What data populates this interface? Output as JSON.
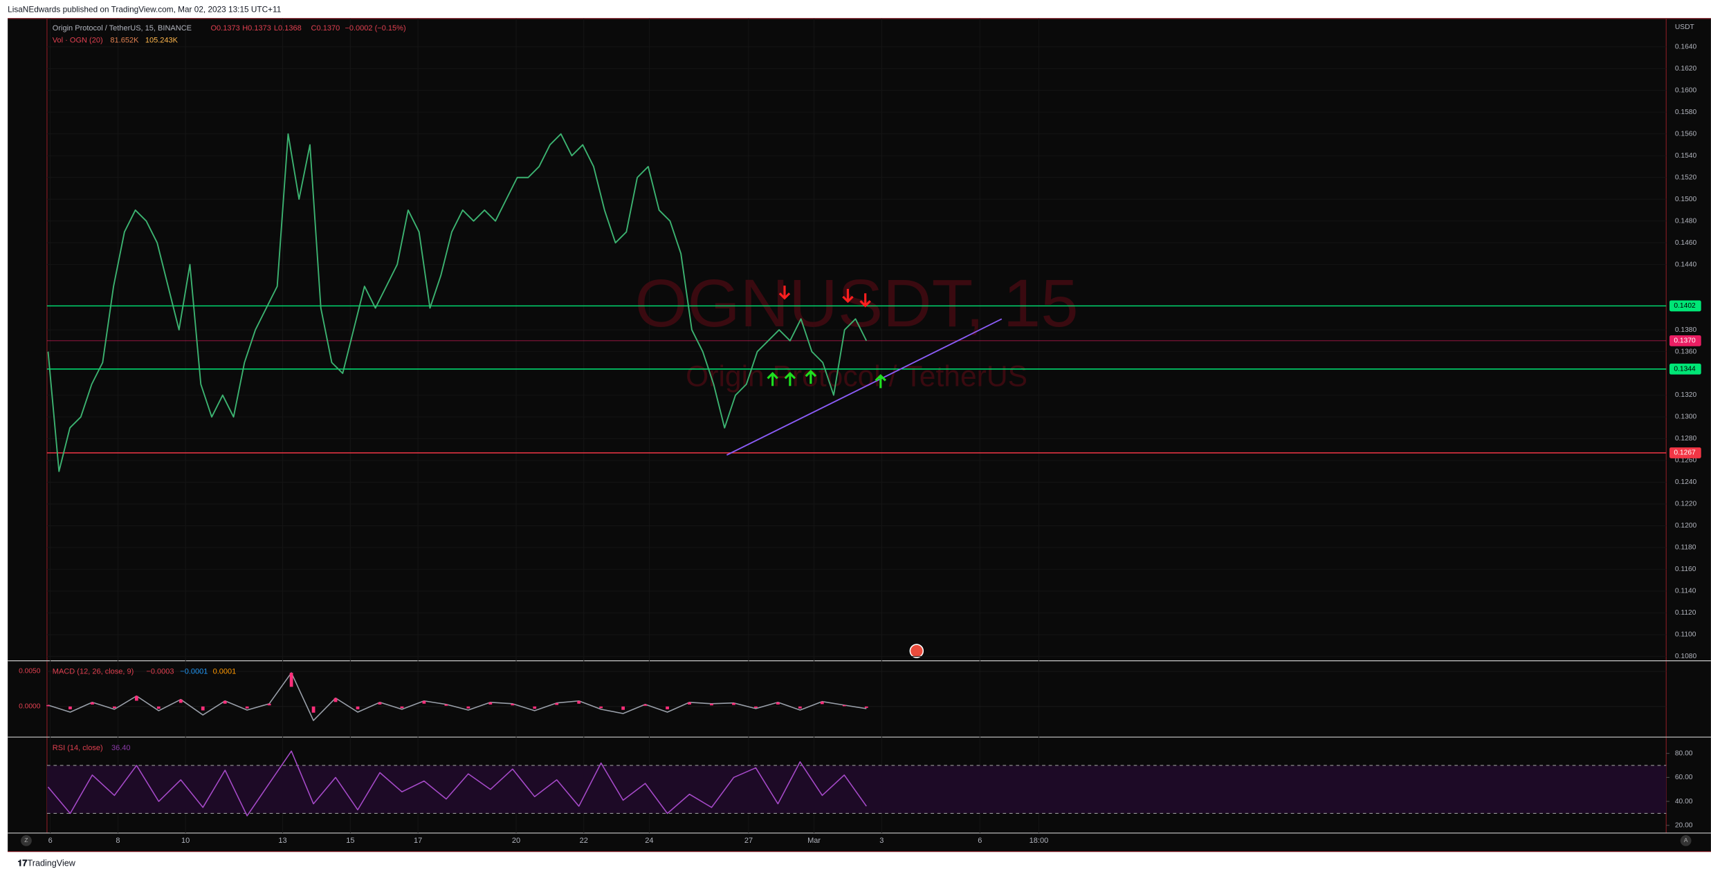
{
  "header": "LisaNEdwards published on TradingView.com, Mar 02, 2023 13:15 UTC+11",
  "footer": "TradingView",
  "chart_data": {
    "type": "line",
    "symbol": "Origin Protocol / TetherUS, 15, BINANCE",
    "ohlc": [
      "O0.1373",
      "H0.1373",
      "L0.1368",
      "C0.1370",
      "−0.0002 (−0.15%)"
    ],
    "volume_legend": [
      "Vol · OGN (20)",
      "81.652K",
      "105.243K"
    ],
    "watermark": [
      "OGNUSDT, 15",
      "Origin Protocol / TetherUS"
    ],
    "currency": "USDT",
    "color": "#3cb371",
    "values": [
      0.136,
      0.125,
      0.129,
      0.13,
      0.133,
      0.135,
      0.142,
      0.147,
      0.149,
      0.148,
      0.146,
      0.142,
      0.138,
      0.144,
      0.133,
      0.13,
      0.132,
      0.13,
      0.135,
      0.138,
      0.14,
      0.142,
      0.156,
      0.15,
      0.155,
      0.14,
      0.135,
      0.134,
      0.138,
      0.142,
      0.14,
      0.142,
      0.144,
      0.149,
      0.147,
      0.14,
      0.143,
      0.147,
      0.149,
      0.148,
      0.149,
      0.148,
      0.15,
      0.152,
      0.152,
      0.153,
      0.155,
      0.156,
      0.154,
      0.155,
      0.153,
      0.149,
      0.146,
      0.147,
      0.152,
      0.153,
      0.149,
      0.148,
      0.145,
      0.138,
      0.136,
      0.133,
      0.129,
      0.132,
      0.133,
      0.136,
      0.137,
      0.138,
      0.137,
      0.139,
      0.136,
      0.135,
      0.132,
      0.138,
      0.139,
      0.137
    ],
    "ylim": [
      0.1077,
      0.1665
    ],
    "yticks": [
      {
        "value": 0.108,
        "label": "0.1080"
      },
      {
        "value": 0.11,
        "label": "0.1100"
      },
      {
        "value": 0.112,
        "label": "0.1120"
      },
      {
        "value": 0.114,
        "label": "0.1140"
      },
      {
        "value": 0.116,
        "label": "0.1160"
      },
      {
        "value": 0.118,
        "label": "0.1180"
      },
      {
        "value": 0.12,
        "label": "0.1200"
      },
      {
        "value": 0.122,
        "label": "0.1220"
      },
      {
        "value": 0.124,
        "label": "0.1240"
      },
      {
        "value": 0.126,
        "label": "0.1260"
      },
      {
        "value": 0.128,
        "label": "0.1280"
      },
      {
        "value": 0.13,
        "label": "0.1300"
      },
      {
        "value": 0.132,
        "label": "0.1320"
      },
      {
        "value": 0.136,
        "label": "0.1360"
      },
      {
        "value": 0.138,
        "label": "0.1380"
      },
      {
        "value": 0.144,
        "label": "0.1440"
      },
      {
        "value": 0.146,
        "label": "0.1460"
      },
      {
        "value": 0.148,
        "label": "0.1480"
      },
      {
        "value": 0.15,
        "label": "0.1500"
      },
      {
        "value": 0.152,
        "label": "0.1520"
      },
      {
        "value": 0.154,
        "label": "0.1540"
      },
      {
        "value": 0.156,
        "label": "0.1560"
      },
      {
        "value": 0.158,
        "label": "0.1580"
      },
      {
        "value": 0.16,
        "label": "0.1600"
      },
      {
        "value": 0.162,
        "label": "0.1620"
      },
      {
        "value": 0.164,
        "label": "0.1640"
      }
    ],
    "levels": [
      {
        "value": 0.1402,
        "label": "0.1402",
        "color": "#00e676"
      },
      {
        "value": 0.1344,
        "label": "0.1344",
        "color": "#00e676"
      },
      {
        "value": 0.1267,
        "label": "0.1267",
        "color": "#f23645"
      },
      {
        "value": 0.137,
        "label": "0.1370",
        "color": "#e91e63"
      }
    ],
    "trendline": {
      "values": [
        0.1265,
        0.139
      ],
      "color": "#8a5cf6"
    },
    "x_labels": [
      "6",
      "8",
      "10",
      "13",
      "15",
      "17",
      "20",
      "22",
      "24",
      "27",
      "Mar",
      "3",
      "6",
      "18:00"
    ],
    "macd": {
      "title": "MACD (12, 26, close, 9)",
      "legend": [
        "−0.0003",
        "−0.0001",
        "0.0001"
      ],
      "color": "#ff2e7a",
      "ylim": [
        -0.0042,
        0.0062
      ],
      "yticks": [
        {
          "value": 0,
          "label": "0.0000"
        },
        {
          "value": 0.005,
          "label": "0.0050"
        }
      ],
      "values": [
        0.0002,
        -0.0008,
        0.0006,
        -0.0004,
        0.0015,
        -0.0006,
        0.001,
        -0.0012,
        0.0008,
        -0.0005,
        0.0004,
        0.0048,
        -0.002,
        0.0012,
        -0.0008,
        0.0006,
        -0.0004,
        0.0008,
        0.0003,
        -0.0005,
        0.0006,
        0.0004,
        -0.0006,
        0.0005,
        0.0008,
        -0.0004,
        -0.001,
        0.0003,
        -0.0008,
        0.0006,
        0.0004,
        0.0005,
        -0.0003,
        0.0006,
        -0.0005,
        0.0007,
        0.0002,
        -0.0003
      ]
    },
    "rsi": {
      "title": "RSI (14, close)",
      "legend": "36.40",
      "color": "#a64ac9",
      "band": [
        30,
        70
      ],
      "ylim": [
        14.5,
        92.7
      ],
      "yticks": [
        {
          "value": 20,
          "label": "20.00"
        },
        {
          "value": 40,
          "label": "40.00"
        },
        {
          "value": 60,
          "label": "60.00"
        },
        {
          "value": 80,
          "label": "80.00"
        }
      ],
      "values": [
        52,
        30,
        62,
        45,
        70,
        40,
        58,
        35,
        66,
        28,
        55,
        82,
        38,
        60,
        33,
        64,
        48,
        57,
        42,
        63,
        50,
        67,
        44,
        58,
        36,
        72,
        41,
        55,
        30,
        46,
        35,
        60,
        68,
        38,
        73,
        45,
        62,
        36
      ]
    }
  }
}
